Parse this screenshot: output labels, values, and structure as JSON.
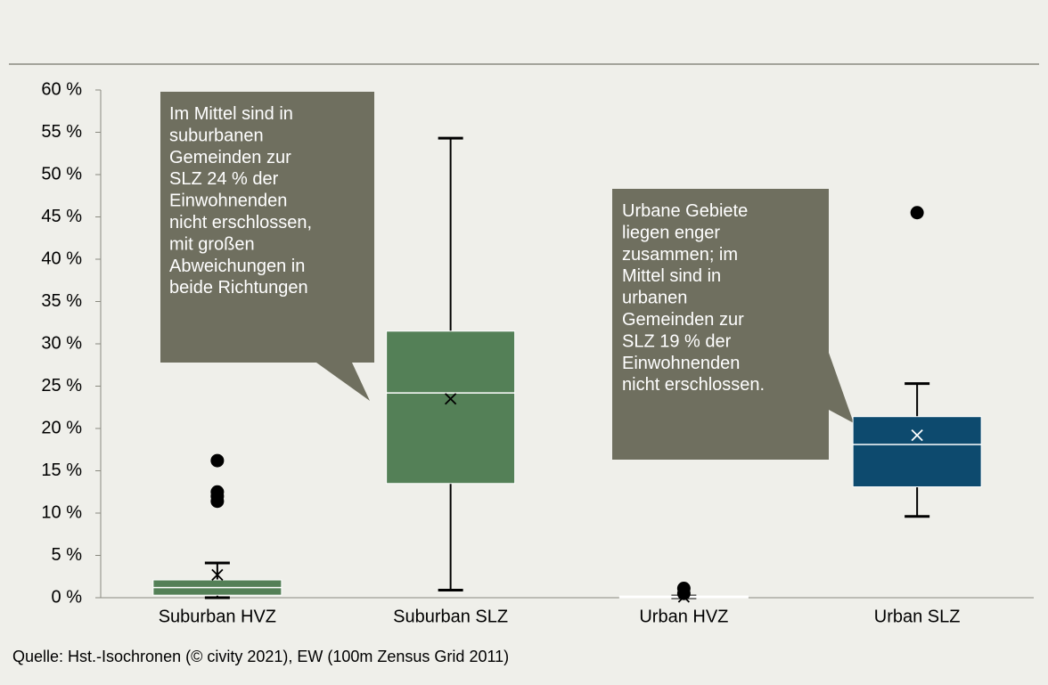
{
  "chart_data": {
    "type": "box",
    "categories": [
      "Suburban HVZ",
      "Suburban SLZ",
      "Urban HVZ",
      "Urban SLZ"
    ],
    "boxes": [
      {
        "min": 0,
        "q1": 0.3,
        "median": 1.2,
        "q3": 2.1,
        "max": 4.1,
        "mean": 2.7,
        "outliers": [
          16.2,
          12.5,
          12.0,
          11.4
        ],
        "color": "#548057",
        "mean_color": "#000000"
      },
      {
        "min": 0.9,
        "q1": 13.5,
        "median": 24.2,
        "q3": 31.5,
        "max": 54.3,
        "mean": 23.5,
        "outliers": [],
        "color": "#548057",
        "mean_color": "#000000"
      },
      {
        "min": 0,
        "q1": 0,
        "median": 0.1,
        "q3": 0.2,
        "max": 0.2,
        "mean": 0.1,
        "outliers": [
          1.1,
          0.5
        ],
        "color": "#0d4a6e",
        "mean_color": "#000000"
      },
      {
        "min": 9.6,
        "q1": 13.1,
        "median": 18.1,
        "q3": 21.4,
        "max": 25.3,
        "mean": 19.2,
        "outliers": [
          45.5
        ],
        "color": "#0d4a6e",
        "mean_color": "#ffffff"
      }
    ],
    "ylim": [
      0,
      60
    ],
    "yticks": [
      {
        "value": 0,
        "label": "0 %"
      },
      {
        "value": 5,
        "label": "5 %"
      },
      {
        "value": 10,
        "label": "10 %"
      },
      {
        "value": 15,
        "label": "15 %"
      },
      {
        "value": 20,
        "label": "20 %"
      },
      {
        "value": 25,
        "label": "25 %"
      },
      {
        "value": 30,
        "label": "30 %"
      },
      {
        "value": 35,
        "label": "35 %"
      },
      {
        "value": 40,
        "label": "40 %"
      },
      {
        "value": 45,
        "label": "45 %"
      },
      {
        "value": 50,
        "label": "50 %"
      },
      {
        "value": 55,
        "label": "55 %"
      },
      {
        "value": 60,
        "label": "60 %"
      }
    ],
    "annotations": [
      [
        "Im Mittel sind in",
        "suburbanen",
        "Gemeinden zur",
        "SLZ 24 % der",
        "Einwohnenden",
        "nicht erschlossen,",
        "mit großen",
        "Abweichungen in",
        "beide Richtungen"
      ],
      [
        "Urbane Gebiete",
        "liegen enger",
        "zusammen; im",
        "Mittel sind in",
        "urbanen",
        "Gemeinden zur",
        "SLZ 19 % der",
        "Einwohnenden",
        "nicht erschlossen."
      ]
    ],
    "source": "Quelle: Hst.-Isochronen (© civity 2021), EW (100m Zensus Grid 2011)"
  }
}
